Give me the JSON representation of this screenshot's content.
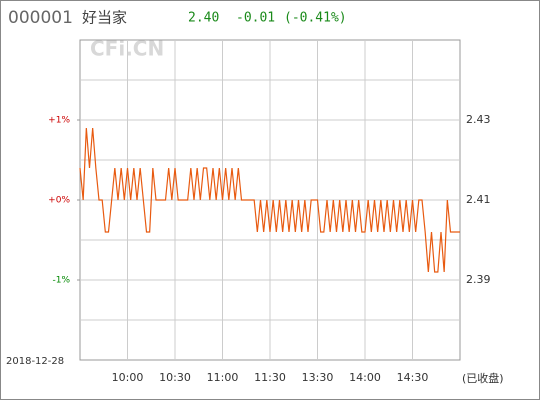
{
  "chart_data": {
    "type": "line",
    "code": "000001",
    "name": "好当家",
    "price": "2.40",
    "change": "-0.01",
    "change_pct": "(-0.41%)",
    "watermark": "CFi.CN",
    "date": "2018-12-28",
    "status": "(已收盘)",
    "x": [
      0,
      2,
      4,
      6,
      8,
      10,
      12,
      14,
      16,
      18,
      20,
      22,
      24,
      26,
      28,
      30,
      32,
      34,
      36,
      38,
      40,
      42,
      44,
      46,
      48,
      50,
      52,
      54,
      56,
      58,
      60,
      62,
      64,
      66,
      68,
      70,
      72,
      74,
      76,
      78,
      80,
      82,
      84,
      86,
      88,
      90,
      92,
      94,
      96,
      98,
      100,
      102,
      104,
      106,
      108,
      110,
      112,
      114,
      116,
      118,
      120,
      122,
      124,
      126,
      128,
      130,
      132,
      134,
      136,
      138,
      140,
      142,
      144,
      146,
      148,
      150,
      152,
      154,
      156,
      158,
      160,
      162,
      164,
      166,
      168,
      170,
      172,
      174,
      176,
      178,
      180,
      182,
      184,
      186,
      188,
      190,
      192,
      194,
      196,
      198,
      200,
      202,
      204,
      206,
      208,
      210,
      212,
      214,
      216,
      218,
      220,
      222,
      224,
      226,
      228,
      230,
      232,
      234,
      236,
      238,
      240
    ],
    "series": [
      {
        "color": "#e85a10",
        "values": [
          2.418,
          2.41,
          2.428,
          2.418,
          2.428,
          2.418,
          2.41,
          2.41,
          2.402,
          2.402,
          2.41,
          2.418,
          2.41,
          2.418,
          2.41,
          2.418,
          2.41,
          2.418,
          2.41,
          2.418,
          2.41,
          2.402,
          2.402,
          2.418,
          2.41,
          2.41,
          2.41,
          2.41,
          2.418,
          2.41,
          2.418,
          2.41,
          2.41,
          2.41,
          2.41,
          2.418,
          2.41,
          2.418,
          2.41,
          2.418,
          2.418,
          2.41,
          2.418,
          2.41,
          2.418,
          2.41,
          2.418,
          2.41,
          2.418,
          2.41,
          2.418,
          2.41,
          2.41,
          2.41,
          2.41,
          2.41,
          2.402,
          2.41,
          2.402,
          2.41,
          2.402,
          2.41,
          2.402,
          2.41,
          2.402,
          2.41,
          2.402,
          2.41,
          2.402,
          2.41,
          2.402,
          2.41,
          2.402,
          2.41,
          2.41,
          2.41,
          2.402,
          2.402,
          2.41,
          2.402,
          2.41,
          2.402,
          2.41,
          2.402,
          2.41,
          2.402,
          2.41,
          2.402,
          2.41,
          2.402,
          2.402,
          2.41,
          2.402,
          2.41,
          2.402,
          2.41,
          2.402,
          2.41,
          2.402,
          2.41,
          2.402,
          2.41,
          2.402,
          2.41,
          2.402,
          2.41,
          2.402,
          2.41,
          2.41,
          2.402,
          2.392,
          2.402,
          2.392,
          2.392,
          2.402,
          2.392,
          2.41,
          2.402,
          2.402,
          2.402,
          2.402
        ]
      }
    ],
    "xlim": [
      0,
      240
    ],
    "xticks": [
      {
        "value": 30,
        "label": "10:00"
      },
      {
        "value": 60,
        "label": "10:30"
      },
      {
        "value": 90,
        "label": "11:00"
      },
      {
        "value": 120,
        "label": "11:30"
      },
      {
        "value": 150,
        "label": "13:30"
      },
      {
        "value": 180,
        "label": "14:00"
      },
      {
        "value": 210,
        "label": "14:30"
      }
    ],
    "ylim": [
      2.37,
      2.45
    ],
    "yticks": [
      2.39,
      2.41,
      2.43
    ],
    "minor_yticks": [
      2.38,
      2.4,
      2.42,
      2.44
    ],
    "y2lim": [
      -2,
      2
    ],
    "y2ticks": [
      {
        "value": 1,
        "label": "+1%",
        "color": "#cc0000"
      },
      {
        "value": 0,
        "label": "+0%",
        "color": "#cc0000"
      },
      {
        "value": -1,
        "label": "-1%",
        "color": "#008800"
      }
    ],
    "grid": true
  }
}
